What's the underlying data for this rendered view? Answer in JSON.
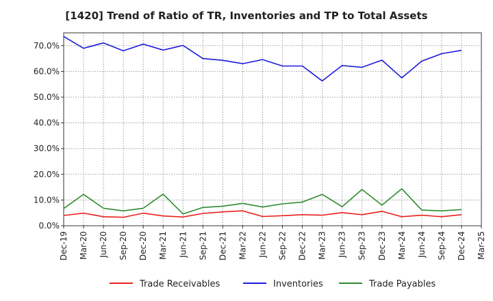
{
  "chart_data": {
    "type": "line",
    "title": "[1420]  Trend of Ratio of TR, Inventories and TP to Total Assets",
    "xlabel": "",
    "ylabel": "",
    "ylim": [
      0,
      75
    ],
    "yticks": [
      0,
      10,
      20,
      30,
      40,
      50,
      60,
      70
    ],
    "ytick_labels": [
      "0.0%",
      "10.0%",
      "20.0%",
      "30.0%",
      "40.0%",
      "50.0%",
      "60.0%",
      "70.0%"
    ],
    "x": [
      "Dec-19",
      "Mar-20",
      "Jun-20",
      "Sep-20",
      "Dec-20",
      "Mar-21",
      "Jun-21",
      "Sep-21",
      "Dec-21",
      "Mar-22",
      "Jun-22",
      "Sep-22",
      "Dec-22",
      "Mar-23",
      "Jun-23",
      "Sep-23",
      "Dec-23",
      "Mar-24",
      "Jun-24",
      "Sep-24",
      "Dec-24"
    ],
    "xtick_labels": [
      "Dec-19",
      "Mar-20",
      "Jun-20",
      "Sep-20",
      "Dec-20",
      "Mar-21",
      "Jun-21",
      "Sep-21",
      "Dec-21",
      "Mar-22",
      "Jun-22",
      "Sep-22",
      "Dec-22",
      "Mar-23",
      "Jun-23",
      "Sep-23",
      "Dec-23",
      "Mar-24",
      "Jun-24",
      "Sep-24",
      "Dec-24",
      "Mar-25"
    ],
    "grid": true,
    "legend_position": "bottom",
    "series": [
      {
        "name": "Trade Receivables",
        "color": "#e8201c",
        "values": [
          4.0,
          4.9,
          3.5,
          3.3,
          4.9,
          3.8,
          3.4,
          4.8,
          5.4,
          5.8,
          3.6,
          3.9,
          4.3,
          4.1,
          5.1,
          4.3,
          5.6,
          3.5,
          4.1,
          3.5,
          4.3
        ]
      },
      {
        "name": "Inventories",
        "color": "#1a1adb",
        "values": [
          73.6,
          69.0,
          71.1,
          68.0,
          70.6,
          68.3,
          70.1,
          65.0,
          64.3,
          63.0,
          64.6,
          62.1,
          62.1,
          56.3,
          62.3,
          61.6,
          64.4,
          57.5,
          64.0,
          66.9,
          68.2
        ]
      },
      {
        "name": "Trade Payables",
        "color": "#2e8b2e",
        "values": [
          6.7,
          12.2,
          6.8,
          5.8,
          6.8,
          12.3,
          4.6,
          7.1,
          7.6,
          8.7,
          7.3,
          8.5,
          9.2,
          12.2,
          7.4,
          14.1,
          8.0,
          14.4,
          6.1,
          5.8,
          6.3
        ]
      }
    ]
  }
}
